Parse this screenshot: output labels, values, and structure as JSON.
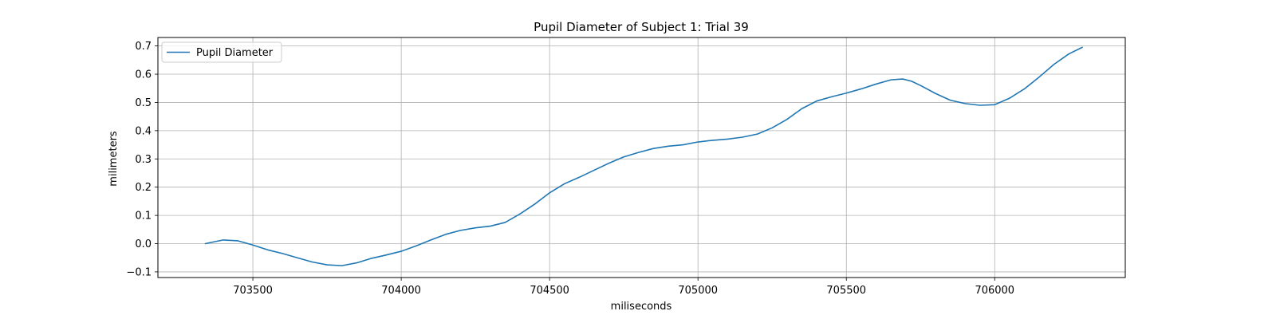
{
  "chart_data": {
    "type": "line",
    "title": "Pupil Diameter of Subject 1: Trial 39",
    "xlabel": "miliseconds",
    "ylabel": "milimeters",
    "xlim": [
      703180,
      706440
    ],
    "ylim": [
      -0.12,
      0.73
    ],
    "x_ticks": [
      703500,
      704000,
      704500,
      705000,
      705500,
      706000
    ],
    "y_ticks": [
      -0.1,
      0.0,
      0.1,
      0.2,
      0.3,
      0.4,
      0.5,
      0.6,
      0.7
    ],
    "y_tick_labels": [
      "−0.1",
      "0.0",
      "0.1",
      "0.2",
      "0.3",
      "0.4",
      "0.5",
      "0.6",
      "0.7"
    ],
    "grid": true,
    "legend_position": "top-left",
    "series": [
      {
        "name": "Pupil Diameter",
        "color": "#1f77b4",
        "x": [
          703340,
          703400,
          703450,
          703500,
          703550,
          703600,
          703650,
          703700,
          703750,
          703800,
          703850,
          703900,
          703950,
          704000,
          704050,
          704100,
          704150,
          704200,
          704250,
          704300,
          704350,
          704400,
          704450,
          704500,
          704550,
          704600,
          704650,
          704700,
          704750,
          704800,
          704850,
          704900,
          704950,
          705000,
          705050,
          705100,
          705150,
          705200,
          705250,
          705300,
          705350,
          705400,
          705450,
          705500,
          705550,
          705600,
          705650,
          705690,
          705720,
          705750,
          705800,
          705850,
          705900,
          705950,
          706000,
          706050,
          706100,
          706150,
          706200,
          706250,
          706295
        ],
        "y": [
          0.0,
          0.013,
          0.01,
          -0.005,
          -0.022,
          -0.035,
          -0.05,
          -0.065,
          -0.075,
          -0.078,
          -0.068,
          -0.052,
          -0.04,
          -0.027,
          -0.008,
          0.013,
          0.033,
          0.047,
          0.056,
          0.062,
          0.075,
          0.105,
          0.14,
          0.18,
          0.212,
          0.235,
          0.26,
          0.285,
          0.307,
          0.323,
          0.337,
          0.345,
          0.35,
          0.36,
          0.366,
          0.37,
          0.377,
          0.388,
          0.41,
          0.44,
          0.478,
          0.505,
          0.52,
          0.533,
          0.548,
          0.565,
          0.58,
          0.583,
          0.575,
          0.56,
          0.532,
          0.508,
          0.496,
          0.49,
          0.492,
          0.515,
          0.548,
          0.59,
          0.635,
          0.672,
          0.695
        ]
      }
    ]
  }
}
